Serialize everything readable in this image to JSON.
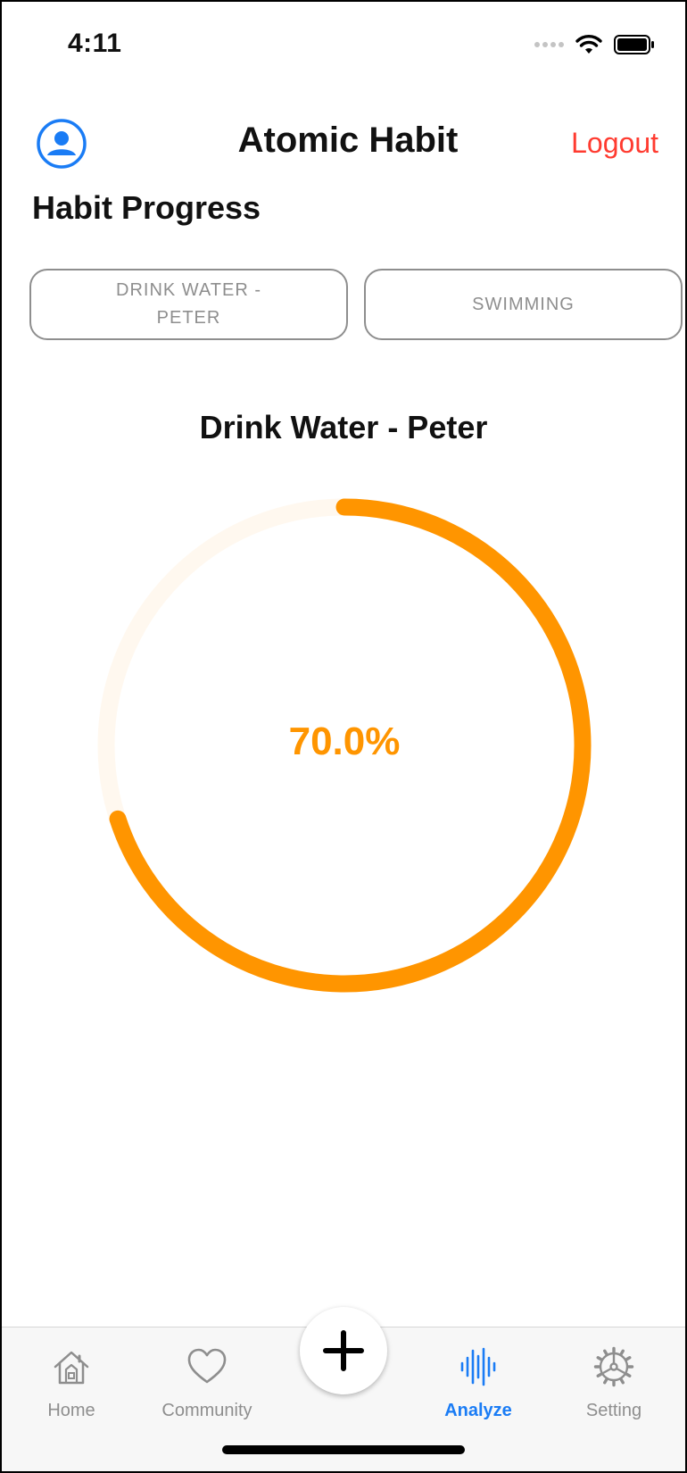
{
  "status_bar": {
    "time": "4:11"
  },
  "header": {
    "title": "Atomic Habit",
    "logout_label": "Logout"
  },
  "section_title": "Habit Progress",
  "habit_chips": [
    {
      "label": "DRINK WATER -\nPETER"
    },
    {
      "label": "SWIMMING"
    }
  ],
  "selected_habit": {
    "name": "Drink Water - Peter",
    "progress_label": "70.0%",
    "progress_fraction": 0.7
  },
  "colors": {
    "accent": "#ff9500",
    "track": "#fff8ef",
    "logout": "#ff3b30",
    "tab_active": "#1a7cf5",
    "tab_inactive": "#8e8e8e",
    "avatar_blue": "#1a7cf5"
  },
  "tabbar": {
    "items": [
      {
        "label": "Home",
        "icon": "home-icon",
        "active": false
      },
      {
        "label": "Community",
        "icon": "heart-icon",
        "active": false
      },
      {
        "label": "Analyze",
        "icon": "waveform-icon",
        "active": true
      },
      {
        "label": "Setting",
        "icon": "gear-icon",
        "active": false
      }
    ],
    "add_icon": "plus-icon"
  }
}
